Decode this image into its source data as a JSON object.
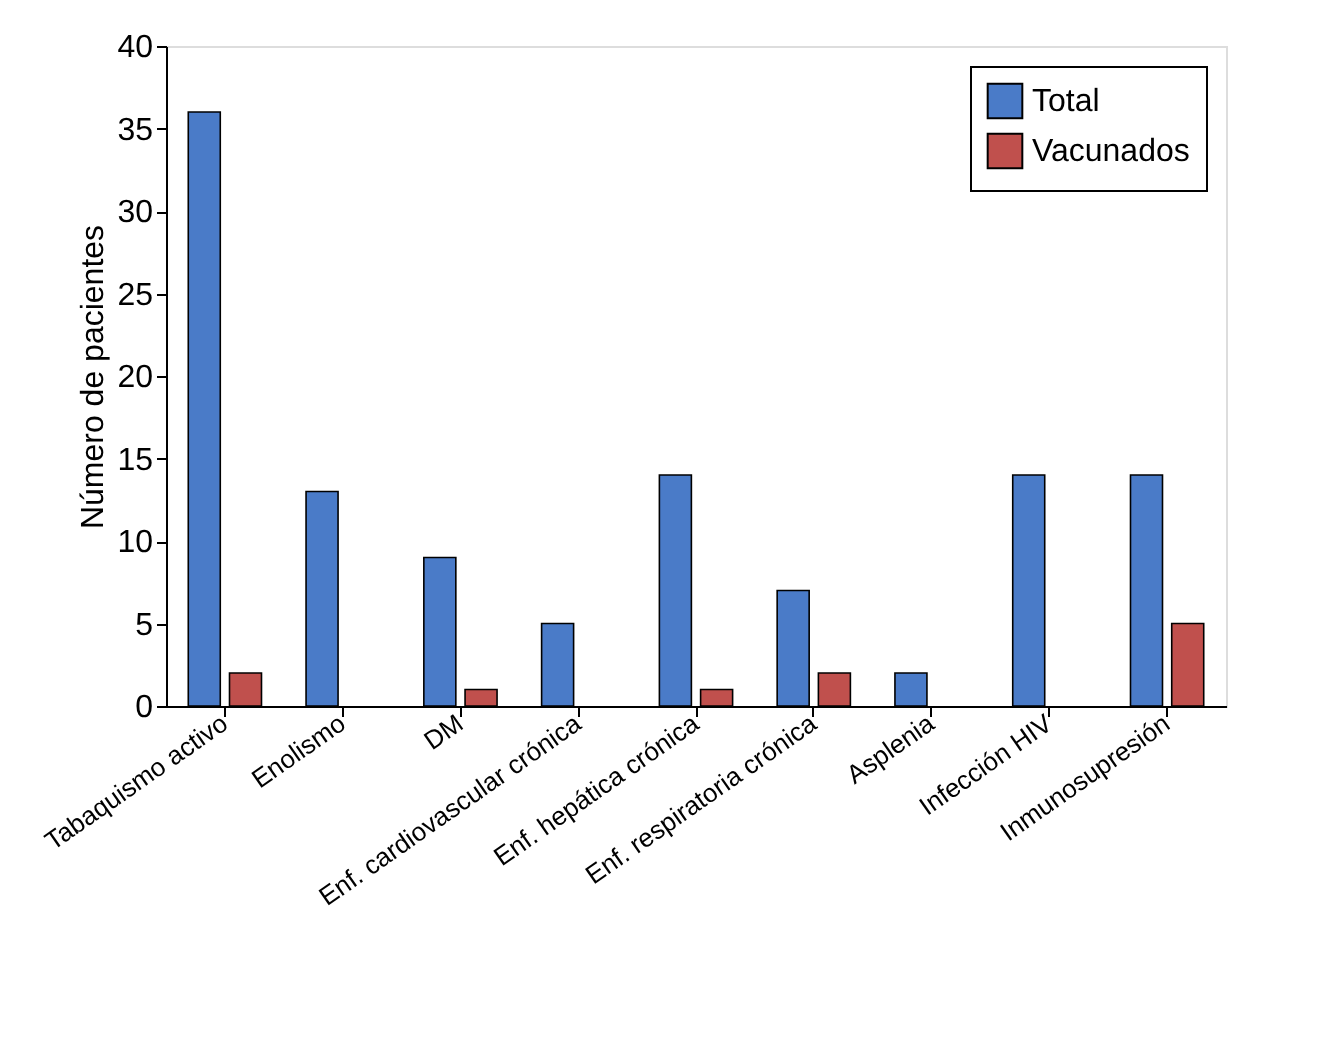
{
  "chart_data": {
    "type": "bar",
    "ylabel": "Número de pacientes",
    "categories": [
      "Tabaquismo activo",
      "Enolismo",
      "DM",
      "Enf. cardiovascular crónica",
      "Enf. hepática crónica",
      "Enf. respiratoria crónica",
      "Asplenia",
      "Infección HIV",
      "Inmunosupresión"
    ],
    "series": [
      {
        "name": "Total",
        "color": "#4a7bc8",
        "values": [
          36,
          13,
          9,
          5,
          14,
          7,
          2,
          14,
          14
        ]
      },
      {
        "name": "Vacunados",
        "color": "#c0504d",
        "values": [
          2,
          null,
          1,
          null,
          1,
          2,
          null,
          null,
          5
        ]
      }
    ],
    "ylim": [
      0,
      40
    ],
    "yticks": [
      0,
      5,
      10,
      15,
      20,
      25,
      30,
      35,
      40
    ],
    "grid": false,
    "legend": "top right"
  }
}
